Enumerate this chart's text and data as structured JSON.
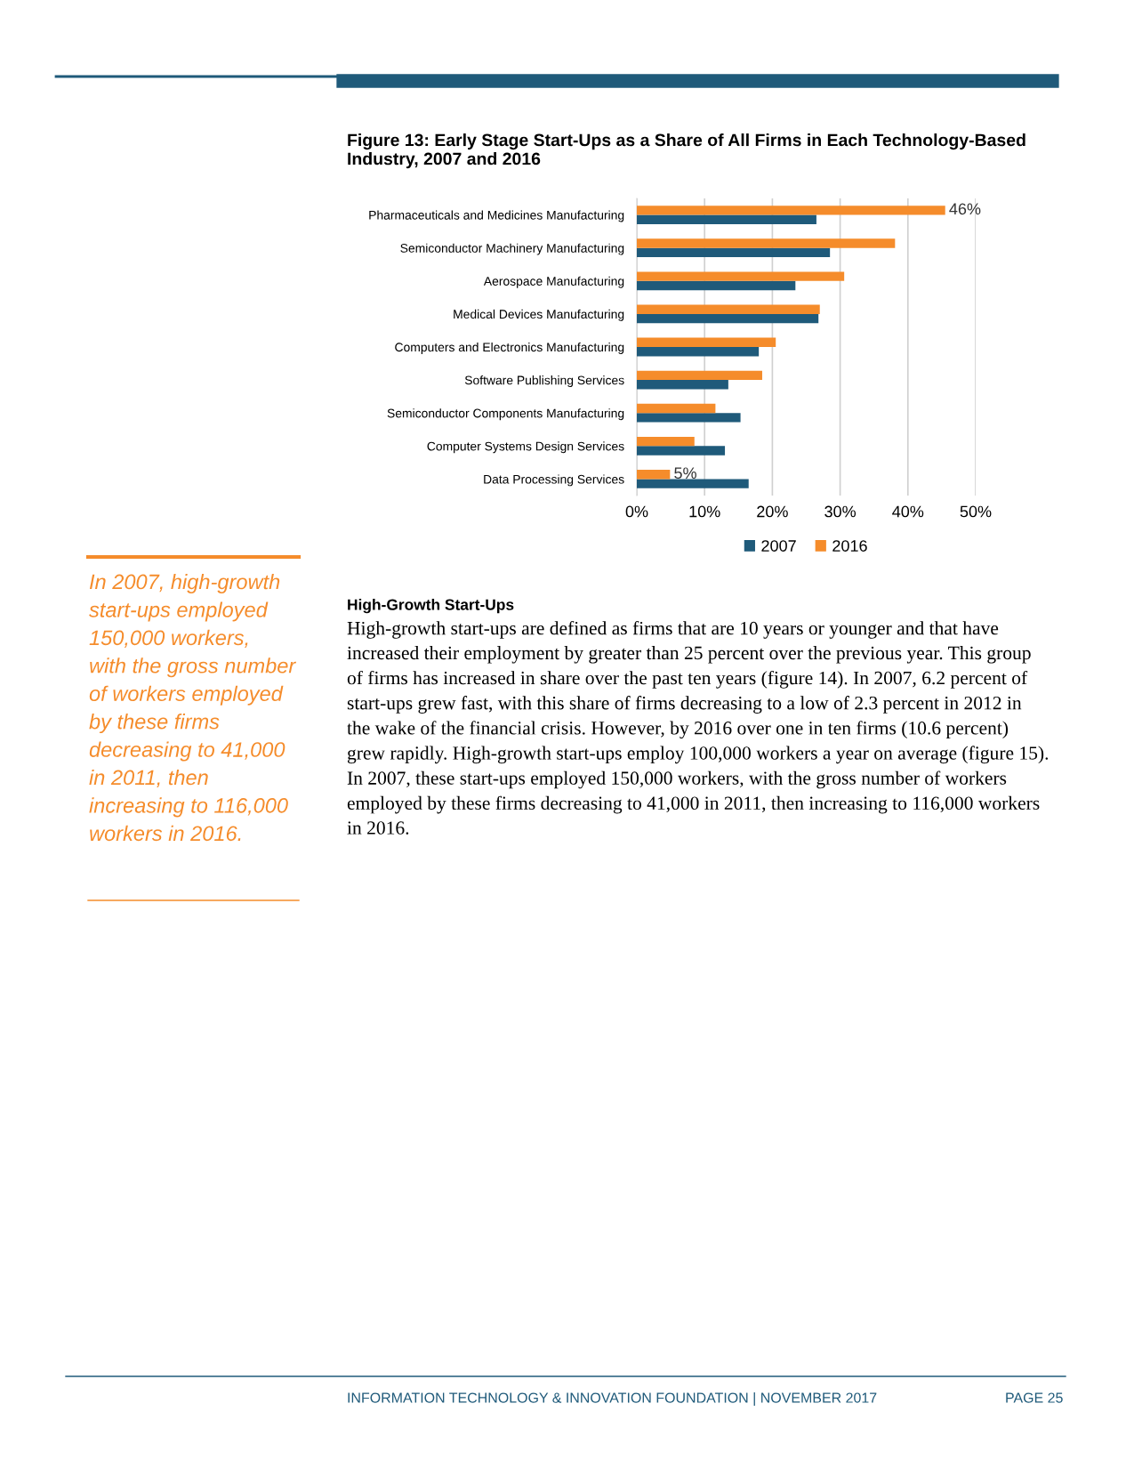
{
  "chart_data": {
    "type": "bar",
    "orientation": "horizontal",
    "title": "Figure 13: Early Stage Start-Ups as a Share of All Firms in Each Technology-Based\nIndustry, 2007 and 2016",
    "categories": [
      "Pharmaceuticals and Medicines Manufacturing",
      "Semiconductor Machinery Manufacturing",
      "Aerospace Manufacturing",
      "Medical Devices Manufacturing",
      "Computers and Electronics Manufacturing",
      "Software Publishing Services",
      "Semiconductor Components Manufacturing",
      "Computer Systems Design Services",
      "Data Processing Services"
    ],
    "series": [
      {
        "name": "2007",
        "color": "#1f5a7a",
        "values": [
          26.5,
          28.5,
          23.4,
          26.8,
          18.0,
          13.5,
          15.3,
          13.0,
          16.5
        ]
      },
      {
        "name": "2016",
        "color": "#f58c2b",
        "values": [
          45.5,
          38.1,
          30.6,
          27.0,
          20.5,
          18.5,
          11.6,
          8.5,
          4.9
        ],
        "value_labels": [
          "46%",
          null,
          null,
          null,
          null,
          null,
          null,
          null,
          "5%"
        ]
      }
    ],
    "xlim": [
      0,
      50
    ],
    "xticks": [
      {
        "value": 0,
        "label": "0%"
      },
      {
        "value": 10,
        "label": "10%"
      },
      {
        "value": 20,
        "label": "20%"
      },
      {
        "value": 30,
        "label": "30%"
      },
      {
        "value": 40,
        "label": "40%"
      },
      {
        "value": 50,
        "label": "50%"
      }
    ],
    "grid": "x",
    "legend": "bottom",
    "annotations": [
      "In 2007, high-growth\nstart-ups employed\n150,000 workers,\nwith the gross number\nof workers employed\nby these firms\ndecreasing to 41,000\nin 2011, then\nincreasing to 116,000\nworkers in 2016.",
      "High-Growth Start-Ups",
      "High-growth start-ups are defined as firms that are 10 years or younger and that have\nincreased their employment by greater than 25 percent over the previous year. This group\nof firms has increased in share over the past ten years (figure 14). In 2007, 6.2 percent of\nstart-ups grew fast, with this share of firms decreasing to a low of 2.3 percent in 2012 in\nthe wake of the financial crisis. However, by 2016 over one in ten firms (10.6 percent)\ngrew rapidly. High-growth start-ups employ 100,000 workers a year on average (figure 15).\nIn 2007, these start-ups employed 150,000 workers, with the gross number of workers\nemployed by these firms decreasing to 41,000 in 2011, then increasing to 116,000 workers\nin 2016.",
      "INFORMATION TECHNOLOGY & INNOVATION FOUNDATION | NOVEMBER 2017",
      "PAGE 25"
    ]
  }
}
